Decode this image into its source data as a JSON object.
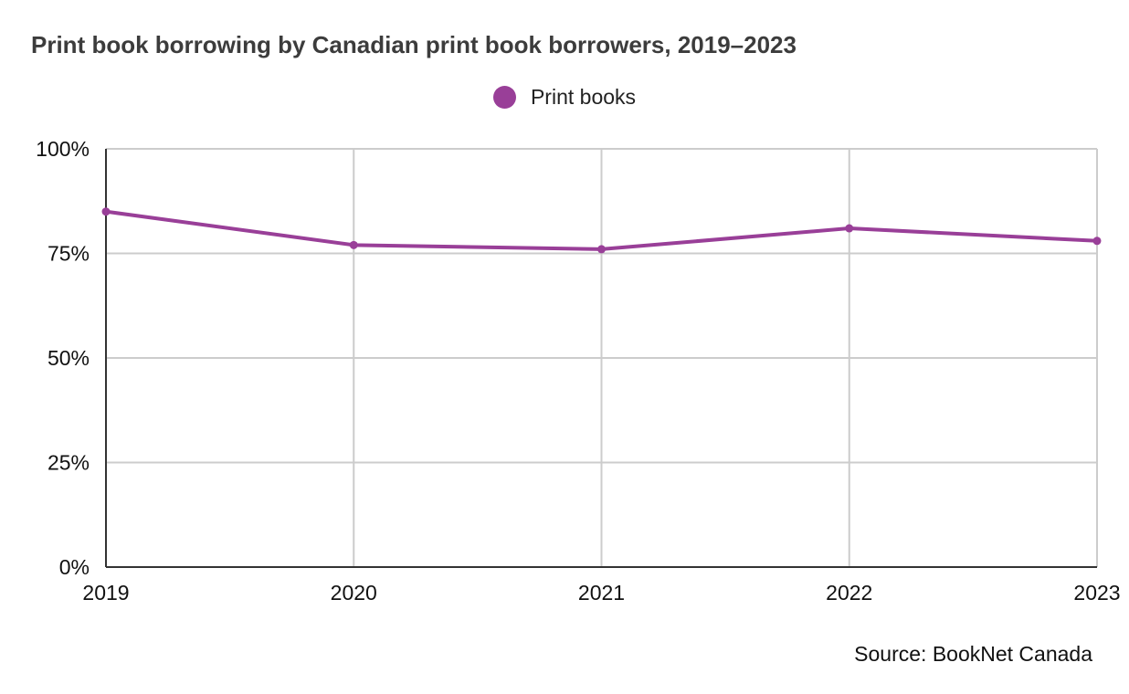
{
  "chart_data": {
    "type": "line",
    "title": "Print book borrowing by Canadian print book borrowers, 2019–2023",
    "x": [
      "2019",
      "2020",
      "2021",
      "2022",
      "2023"
    ],
    "series": [
      {
        "name": "Print books",
        "values": [
          85,
          77,
          76,
          81,
          78
        ],
        "color": "#993f98"
      }
    ],
    "ylim": [
      0,
      100
    ],
    "yticks": [
      0,
      25,
      50,
      75,
      100
    ],
    "ytick_labels": [
      "0%",
      "25%",
      "50%",
      "75%",
      "100%"
    ],
    "xlabel": "",
    "ylabel": "",
    "grid": true,
    "legend_position": "top-center",
    "source": "Source: BookNet Canada"
  }
}
